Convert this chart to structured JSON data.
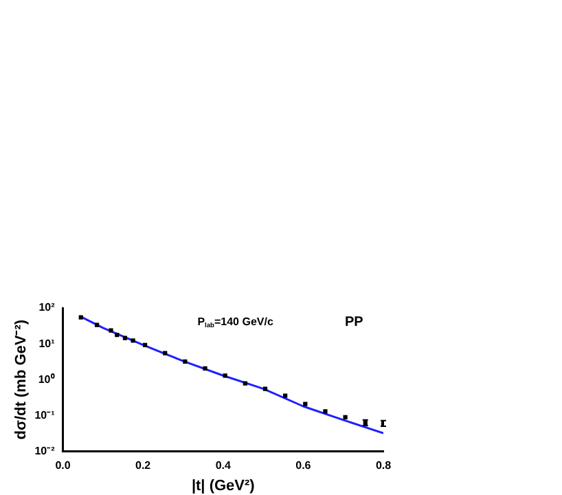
{
  "chart_data": {
    "type": "scatter",
    "xlabel": "|t| (GeV²)",
    "ylabel": "dσ/dt (mb GeV⁻²)",
    "annotations": [
      "P$_{lab}$=140 GeV/c",
      "PP"
    ],
    "log": "y",
    "grid": false,
    "legend": false,
    "xlim": [
      0,
      0.8
    ],
    "xticks": [
      {
        "value": 0,
        "label": "0.0"
      },
      0.2,
      0.4,
      0.6,
      0.8
    ],
    "ylim": [
      0.01,
      100
    ],
    "yticks": [
      {
        "value": 0.01,
        "label": "10⁻²"
      },
      {
        "value": 0.1,
        "label": "10⁻¹"
      },
      {
        "value": 1,
        "label": "10⁰"
      },
      {
        "value": 10,
        "label": "10¹"
      },
      {
        "value": 100,
        "label": "10²"
      }
    ],
    "series": [
      {
        "color": "#000000",
        "marker": "square",
        "x": [
          0.045,
          0.085,
          0.12,
          0.135,
          0.155,
          0.175,
          0.205,
          0.255,
          0.305,
          0.355,
          0.405,
          0.455,
          0.505,
          0.555,
          0.605,
          0.655,
          0.705,
          0.755,
          0.8
        ],
        "values": [
          55,
          33.5,
          23.7,
          17.8,
          14.5,
          12.3,
          9.2,
          5.5,
          3.2,
          2.05,
          1.3,
          0.79,
          0.55,
          0.355,
          0.21,
          0.13,
          0.089,
          0.063,
          0.06
        ],
        "errors": [
          null,
          null,
          null,
          null,
          null,
          null,
          null,
          null,
          null,
          null,
          null,
          null,
          null,
          null,
          null,
          null,
          null,
          [
            0.052,
            0.075
          ],
          [
            0.05,
            0.072
          ]
        ]
      },
      {
        "type": "line",
        "color": "#1f1fff",
        "marker": "none",
        "x": [
          0.044,
          0.1,
          0.2,
          0.3,
          0.4,
          0.5,
          0.6,
          0.7,
          0.8
        ],
        "values": [
          58,
          28,
          9.3,
          3.3,
          1.3,
          0.56,
          0.18,
          0.075,
          0.032
        ]
      }
    ]
  }
}
